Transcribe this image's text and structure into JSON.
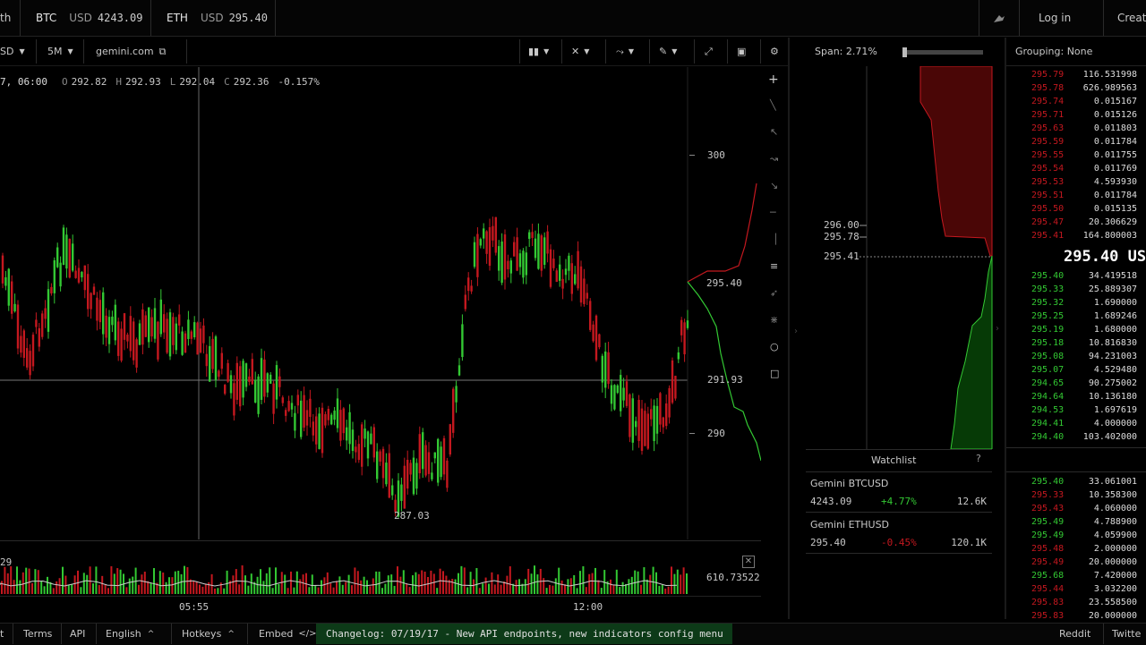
{
  "topbar": {
    "nav_fragment": "th",
    "tickers": [
      {
        "sym": "BTC",
        "quote": "USD",
        "price": "4243.09"
      },
      {
        "sym": "ETH",
        "quote": "USD",
        "price": "295.40"
      }
    ],
    "login_label": "Log in",
    "create_fragment": "Creat"
  },
  "chart_toolbar": {
    "currency_fragment": "SD",
    "interval": "5M",
    "exchange": "gemini.com"
  },
  "ohlc": {
    "time": "7, 06:00",
    "o_label": "O",
    "o": "292.82",
    "h_label": "H",
    "h": "292.93",
    "l_label": "L",
    "l": "292.04",
    "c_label": "C",
    "c": "292.36",
    "change": "-0.157%"
  },
  "price_axis": {
    "levels": [
      "300",
      "295.40",
      "291.93",
      "290"
    ],
    "low_label": "287.03"
  },
  "volume": {
    "left_label": "29",
    "right_label": "610.73522"
  },
  "time_axis": [
    "05:55",
    "12:00"
  ],
  "depth": {
    "span_label": "Span: 2.71%",
    "levels": [
      "296.00",
      "295.78",
      "295.41"
    ]
  },
  "watchlist": {
    "title": "Watchlist",
    "help": "?",
    "items": [
      {
        "name": "Gemini BTCUSD",
        "price": "4243.09",
        "change": "+4.77%",
        "vol": "12.6K",
        "dir": "up"
      },
      {
        "name": "Gemini ETHUSD",
        "price": "295.40",
        "change": "-0.45%",
        "vol": "120.1K",
        "dir": "down"
      }
    ]
  },
  "orderbook": {
    "grouping": "Grouping: None",
    "asks": [
      [
        "295.79",
        "116.531998"
      ],
      [
        "295.78",
        "626.989563"
      ],
      [
        "295.74",
        "0.015167"
      ],
      [
        "295.71",
        "0.015126"
      ],
      [
        "295.63",
        "0.011803"
      ],
      [
        "295.59",
        "0.011784"
      ],
      [
        "295.55",
        "0.011755"
      ],
      [
        "295.54",
        "0.011769"
      ],
      [
        "295.53",
        "4.593930"
      ],
      [
        "295.51",
        "0.011784"
      ],
      [
        "295.50",
        "0.015135"
      ],
      [
        "295.47",
        "20.306629"
      ],
      [
        "295.41",
        "164.800003"
      ]
    ],
    "mid": "295.40 US",
    "bids": [
      [
        "295.40",
        "34.419518"
      ],
      [
        "295.33",
        "25.889307"
      ],
      [
        "295.32",
        "1.690000"
      ],
      [
        "295.25",
        "1.689246"
      ],
      [
        "295.19",
        "1.680000"
      ],
      [
        "295.18",
        "10.816830"
      ],
      [
        "295.08",
        "94.231003"
      ],
      [
        "295.07",
        "4.529480"
      ],
      [
        "294.65",
        "90.275002"
      ],
      [
        "294.64",
        "10.136180"
      ],
      [
        "294.53",
        "1.697619"
      ],
      [
        "294.41",
        "4.000000"
      ],
      [
        "294.40",
        "103.402000"
      ]
    ],
    "trades": [
      [
        "295.40",
        "33.061001",
        "buy"
      ],
      [
        "295.33",
        "10.358300",
        "sell"
      ],
      [
        "295.43",
        "4.060000",
        "sell"
      ],
      [
        "295.49",
        "4.788900",
        "buy"
      ],
      [
        "295.49",
        "4.059900",
        "buy"
      ],
      [
        "295.48",
        "2.000000",
        "sell"
      ],
      [
        "295.49",
        "20.000000",
        "sell"
      ],
      [
        "295.68",
        "7.420000",
        "buy"
      ],
      [
        "295.44",
        "3.032200",
        "sell"
      ],
      [
        "295.83",
        "23.558500",
        "sell"
      ],
      [
        "295.83",
        "20.000000",
        "sell"
      ]
    ]
  },
  "footer": {
    "items": [
      "t",
      "Terms",
      "API",
      "English",
      "Hotkeys",
      "Embed"
    ],
    "changelog": "Changelog: 07/19/17 - New API endpoints, new indicators config menu",
    "reddit": "Reddit",
    "twitter": "Twitte"
  },
  "colors": {
    "up": "#33c833",
    "down": "#c4181f",
    "bg": "#000000",
    "changelog_bg": "#0d3a18"
  }
}
